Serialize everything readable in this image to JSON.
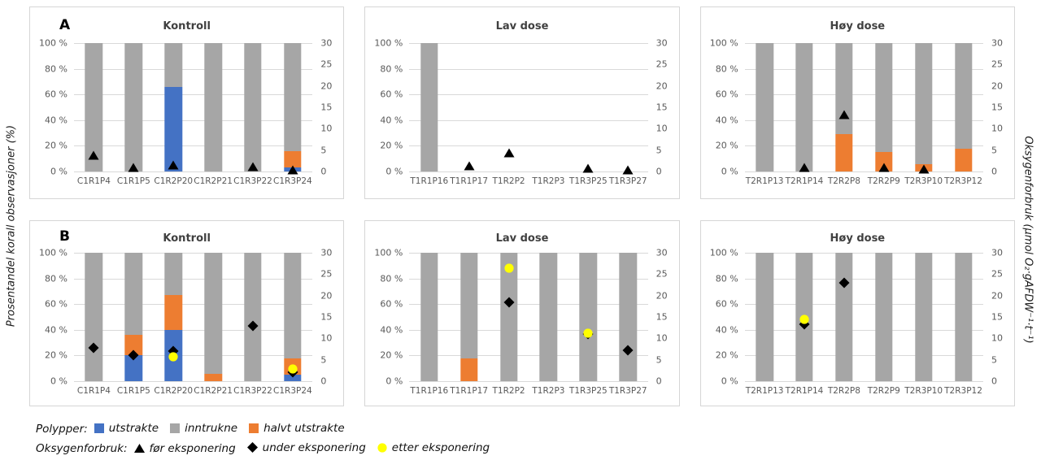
{
  "figure": {
    "left_axis_label": "Prosentandel korall observasjoner (%)",
    "right_axis_label": "Oksygenforbruk (µmol O₂·gAFDW⁻¹·t⁻¹)"
  },
  "colors": {
    "utstrakte": "#4472C4",
    "inntrukne": "#A6A6A6",
    "halvt_utstrakte": "#ED7D31",
    "marker_black": "#000000",
    "etter_eksponering": "#FFFF00",
    "gridline": "#D9D9D9",
    "tick_text": "#595959",
    "title_text": "#404040"
  },
  "axes": {
    "left_ticks": [
      "100 %",
      "80 %",
      "60 %",
      "40 %",
      "20 %",
      "0 %"
    ],
    "right_ticks": [
      "30",
      "25",
      "20",
      "15",
      "10",
      "5",
      "0"
    ],
    "left_range": [
      0,
      100
    ],
    "right_range": [
      0,
      30
    ],
    "grid": true
  },
  "legend": {
    "row1_label": "Polypper:",
    "row1_items": [
      {
        "label": "utstrakte",
        "marker": "square",
        "color": "#4472C4"
      },
      {
        "label": "inntrukne",
        "marker": "square",
        "color": "#A6A6A6"
      },
      {
        "label": "halvt utstrakte",
        "marker": "square",
        "color": "#ED7D31"
      }
    ],
    "row2_label": "Oksygenforbruk:",
    "row2_items": [
      {
        "label": "før eksponering",
        "marker": "triangle",
        "color": "#000000"
      },
      {
        "label": "under eksponering",
        "marker": "diamond",
        "color": "#000000"
      },
      {
        "label": "etter eksponering",
        "marker": "circle",
        "color": "#FFFF00"
      }
    ]
  },
  "chart_data": [
    {
      "id": "panel-a-kontroll",
      "row_label": "A",
      "title": "Kontroll",
      "type": "bar",
      "categories": [
        "C1R1P4",
        "C1R1P5",
        "C1R2P20",
        "C1R2P21",
        "C1R3P22",
        "C1R3P24"
      ],
      "series": [
        {
          "name": "utstrakte",
          "values": [
            0,
            0,
            66,
            0,
            0,
            3
          ]
        },
        {
          "name": "halvt utstrakte",
          "values": [
            0,
            0,
            0,
            0,
            0,
            13
          ]
        },
        {
          "name": "inntrukne",
          "values": [
            100,
            100,
            34,
            100,
            100,
            84
          ]
        }
      ],
      "markers": [
        {
          "name": "før eksponering",
          "shape": "triangle",
          "axis": "right",
          "values": [
            3.8,
            1.0,
            1.5,
            null,
            1.1,
            0.4
          ]
        }
      ]
    },
    {
      "id": "panel-a-lav-dose",
      "row_label": "",
      "title": "Lav dose",
      "type": "bar",
      "categories": [
        "T1R1P16",
        "T1R1P17",
        "T1R2P2",
        "T1R2P3",
        "T1R3P25",
        "T1R3P27"
      ],
      "series": [
        {
          "name": "utstrakte",
          "values": [
            0,
            0,
            0,
            0,
            0,
            0
          ]
        },
        {
          "name": "halvt utstrakte",
          "values": [
            0,
            0,
            0,
            0,
            0,
            0
          ]
        },
        {
          "name": "inntrukne",
          "values": [
            100,
            0,
            0,
            0,
            0,
            0
          ]
        }
      ],
      "markers": [
        {
          "name": "før eksponering",
          "shape": "triangle",
          "axis": "right",
          "values": [
            null,
            1.3,
            4.3,
            null,
            0.8,
            0.4
          ]
        }
      ]
    },
    {
      "id": "panel-a-hoy-dose",
      "row_label": "",
      "title": "Høy dose",
      "type": "bar",
      "categories": [
        "T2R1P13",
        "T2R1P14",
        "T2R2P8",
        "T2R2P9",
        "T2R3P10",
        "T2R3P12"
      ],
      "series": [
        {
          "name": "utstrakte",
          "values": [
            0,
            0,
            0,
            0,
            0,
            0
          ]
        },
        {
          "name": "halvt utstrakte",
          "values": [
            0,
            0,
            29,
            15,
            6,
            18
          ]
        },
        {
          "name": "inntrukne",
          "values": [
            100,
            100,
            71,
            85,
            94,
            82
          ]
        }
      ],
      "markers": [
        {
          "name": "før eksponering",
          "shape": "triangle",
          "axis": "right",
          "values": [
            null,
            1.0,
            13.2,
            0.9,
            0.6,
            null
          ]
        }
      ]
    },
    {
      "id": "panel-b-kontroll",
      "row_label": "B",
      "title": "Kontroll",
      "type": "bar",
      "categories": [
        "C1R1P4",
        "C1R1P5",
        "C1R2P20",
        "C1R2P21",
        "C1R3P22",
        "C1R3P24"
      ],
      "series": [
        {
          "name": "utstrakte",
          "values": [
            0,
            20,
            40,
            0,
            0,
            5
          ]
        },
        {
          "name": "halvt utstrakte",
          "values": [
            0,
            16,
            27,
            6,
            0,
            13
          ]
        },
        {
          "name": "inntrukne",
          "values": [
            100,
            64,
            33,
            94,
            100,
            82
          ]
        }
      ],
      "markers": [
        {
          "name": "under eksponering",
          "shape": "diamond",
          "axis": "right",
          "values": [
            7.7,
            6.1,
            7.0,
            null,
            13.0,
            2.1
          ]
        },
        {
          "name": "etter eksponering",
          "shape": "circle",
          "axis": "right",
          "values": [
            null,
            null,
            5.7,
            null,
            null,
            2.9
          ]
        }
      ]
    },
    {
      "id": "panel-b-lav-dose",
      "row_label": "",
      "title": "Lav dose",
      "type": "bar",
      "categories": [
        "T1R1P16",
        "T1R1P17",
        "T1R2P2",
        "T1R2P3",
        "T1R3P25",
        "T1R3P27"
      ],
      "series": [
        {
          "name": "utstrakte",
          "values": [
            0,
            0,
            0,
            0,
            0,
            0
          ]
        },
        {
          "name": "halvt utstrakte",
          "values": [
            0,
            18,
            0,
            0,
            0,
            0
          ]
        },
        {
          "name": "inntrukne",
          "values": [
            100,
            82,
            100,
            100,
            100,
            100
          ]
        }
      ],
      "markers": [
        {
          "name": "under eksponering",
          "shape": "diamond",
          "axis": "right",
          "values": [
            null,
            null,
            18.4,
            null,
            11.0,
            7.3
          ]
        },
        {
          "name": "etter eksponering",
          "shape": "circle",
          "axis": "right",
          "values": [
            null,
            null,
            26.4,
            null,
            11.2,
            null
          ]
        }
      ]
    },
    {
      "id": "panel-b-hoy-dose",
      "row_label": "",
      "title": "Høy dose",
      "type": "bar",
      "categories": [
        "T2R1P13",
        "T2R1P14",
        "T2R2P8",
        "T2R2P9",
        "T2R3P10",
        "T2R3P12"
      ],
      "series": [
        {
          "name": "utstrakte",
          "values": [
            0,
            0,
            0,
            0,
            0,
            0
          ]
        },
        {
          "name": "halvt utstrakte",
          "values": [
            0,
            0,
            0,
            0,
            0,
            0
          ]
        },
        {
          "name": "inntrukne",
          "values": [
            100,
            100,
            100,
            100,
            100,
            100
          ]
        }
      ],
      "markers": [
        {
          "name": "under eksponering",
          "shape": "diamond",
          "axis": "right",
          "values": [
            null,
            13.3,
            23.0,
            null,
            null,
            null
          ]
        },
        {
          "name": "etter eksponering",
          "shape": "circle",
          "axis": "right",
          "values": [
            null,
            14.5,
            null,
            null,
            null,
            null
          ]
        }
      ]
    }
  ]
}
